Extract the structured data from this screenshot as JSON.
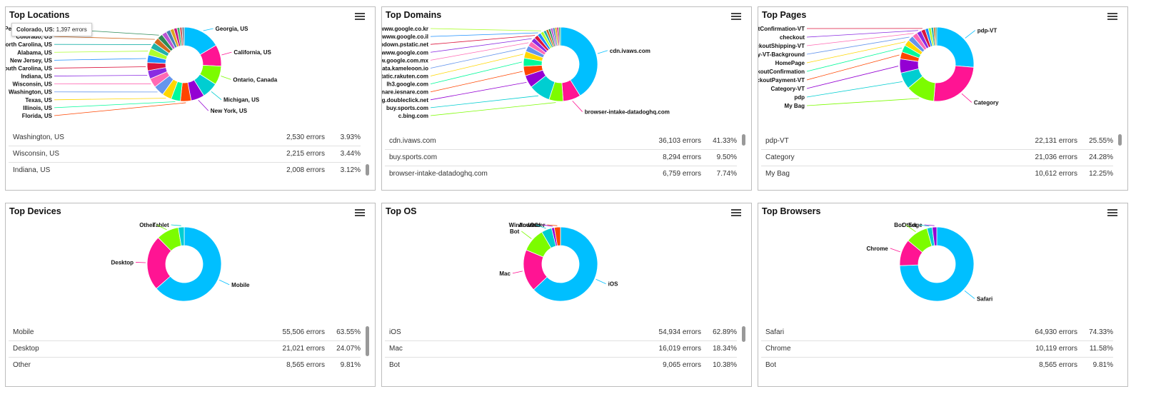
{
  "colors": {
    "palette": [
      "#00BFFF",
      "#FF1493",
      "#7CFC00",
      "#00CED1",
      "#9400D3",
      "#FF4500",
      "#00FA9A",
      "#FFD700",
      "#6495ED",
      "#FF69B4",
      "#8A2BE2",
      "#DC143C",
      "#1E90FF",
      "#ADFF2F",
      "#20B2AA",
      "#D2691E",
      "#2E8B57",
      "#BA55D3",
      "#4682B4",
      "#DAA520",
      "#C71585",
      "#3CB371",
      "#CD5C5C",
      "#708090",
      "#A9A9A9",
      "#C0C0C0",
      "#D3D3D3",
      "#E0E0E0"
    ]
  },
  "cards": [
    {
      "title": "Top Locations",
      "tooltip": {
        "label": "Colorado, US:",
        "value": "1,397 errors"
      },
      "rows": [
        {
          "name": "Washington, US",
          "errors": "2,530 errors",
          "pct": "3.93%"
        },
        {
          "name": "Wisconsin, US",
          "errors": "2,215 errors",
          "pct": "3.44%"
        },
        {
          "name": "Indiana, US",
          "errors": "2,008 errors",
          "pct": "3.12%"
        }
      ],
      "chart_data": {
        "type": "pie",
        "donut": true,
        "labels": [
          "Georgia, US",
          "California, US",
          "Ontario, Canada",
          "Michigan, US",
          "New York, US",
          "Florida, US",
          "Illinois, US",
          "Texas, US",
          "Washington, US",
          "Wisconsin, US",
          "Indiana, US",
          "South Carolina, US",
          "New Jersey, US",
          "Alabama, US",
          "North Carolina, US",
          "Colorado, US",
          "Pennsylvania, US",
          "",
          "",
          "",
          "",
          "",
          "",
          ""
        ],
        "values": [
          14,
          8,
          7,
          6,
          5,
          4,
          3.5,
          3.5,
          3.93,
          3.44,
          3.12,
          3,
          2.8,
          2.6,
          2.4,
          2.17,
          2,
          1.8,
          1.6,
          1.4,
          1.2,
          1,
          0.9,
          0.8
        ],
        "label_side": [
          "r",
          "r",
          "r",
          "r",
          "r",
          "l",
          "l",
          "l",
          "l",
          "l",
          "l",
          "l",
          "l",
          "l",
          "l",
          "l",
          "l",
          "",
          "",
          "",
          "",
          "",
          "",
          ""
        ]
      }
    },
    {
      "title": "Top Domains",
      "rows": [
        {
          "name": "cdn.ivaws.com",
          "errors": "36,103 errors",
          "pct": "41.33%"
        },
        {
          "name": "buy.sports.com",
          "errors": "8,294 errors",
          "pct": "9.50%"
        },
        {
          "name": "browser-intake-datadoghq.com",
          "errors": "6,759 errors",
          "pct": "7.74%"
        }
      ],
      "chart_data": {
        "type": "pie",
        "donut": true,
        "labels": [
          "cdn.ivaws.com",
          "browser-intake-datadoghq.com",
          "c.bing.com",
          "buy.sports.com",
          "googleads.g.doubleclick.net",
          "mpsnare.iesnare.com",
          "lh3.google.com",
          "static.rakuten.com",
          "na-data.kameleoon.io",
          "www.google.com.mx",
          "www.google.com",
          "appdown.pstatic.net",
          "www.google.co.il",
          "www.google.co.kr",
          "",
          "",
          "",
          "",
          "",
          "",
          "",
          ""
        ],
        "values": [
          41.33,
          7.74,
          6.2,
          9.5,
          5.5,
          4.2,
          3.6,
          3.0,
          2.6,
          2.3,
          2.0,
          1.8,
          1.6,
          1.4,
          1.2,
          1.1,
          1.0,
          1.0,
          0.9,
          0.9,
          0.8,
          0.8
        ],
        "label_side": [
          "r",
          "r",
          "l",
          "l",
          "l",
          "l",
          "l",
          "l",
          "l",
          "l",
          "l",
          "l",
          "l",
          "l",
          "",
          "",
          "",
          "",
          "",
          "",
          "",
          ""
        ]
      }
    },
    {
      "title": "Top Pages",
      "rows": [
        {
          "name": "pdp-VT",
          "errors": "22,131 errors",
          "pct": "25.55%"
        },
        {
          "name": "Category",
          "errors": "21,036 errors",
          "pct": "24.28%"
        },
        {
          "name": "My Bag",
          "errors": "10,612 errors",
          "pct": "12.25%"
        }
      ],
      "chart_data": {
        "type": "pie",
        "donut": true,
        "labels": [
          "pdp-VT",
          "Category",
          "My Bag",
          "pdp",
          "Category-VT",
          "checkoutPayment-VT",
          "checkoutConfirmation",
          "HomePage",
          "Category-VT-Background",
          "checkoutShipping-VT",
          "checkout",
          "checkoutConfirmation-VT",
          "",
          "",
          "",
          "",
          ""
        ],
        "values": [
          25.55,
          24.28,
          12.25,
          7,
          6,
          3,
          3,
          2.6,
          2.4,
          2.2,
          2,
          1.8,
          1.4,
          1.2,
          1.0,
          0.8,
          0.6
        ],
        "label_side": [
          "r",
          "r",
          "l",
          "l",
          "l",
          "l",
          "l",
          "l",
          "l",
          "l",
          "l",
          "l",
          "",
          "",
          "",
          "",
          ""
        ]
      }
    },
    {
      "title": "Top Devices",
      "rows": [
        {
          "name": "Mobile",
          "errors": "55,506 errors",
          "pct": "63.55%"
        },
        {
          "name": "Desktop",
          "errors": "21,021 errors",
          "pct": "24.07%"
        },
        {
          "name": "Other",
          "errors": "8,565 errors",
          "pct": "9.81%"
        }
      ],
      "chart_data": {
        "type": "pie",
        "donut": true,
        "labels": [
          "Mobile",
          "Desktop",
          "Other",
          "Tablet"
        ],
        "values": [
          63.55,
          24.07,
          9.81,
          2.57
        ],
        "label_side": [
          "r",
          "l",
          "l",
          "l"
        ]
      }
    },
    {
      "title": "Top OS",
      "rows": [
        {
          "name": "iOS",
          "errors": "54,934 errors",
          "pct": "62.89%"
        },
        {
          "name": "Mac",
          "errors": "16,019 errors",
          "pct": "18.34%"
        },
        {
          "name": "Bot",
          "errors": "9,065 errors",
          "pct": "10.38%"
        }
      ],
      "chart_data": {
        "type": "pie",
        "donut": true,
        "labels": [
          "iOS",
          "Mac",
          "Bot",
          "Windows",
          "Android",
          "Other"
        ],
        "values": [
          62.89,
          18.34,
          10.38,
          4.5,
          1.2,
          2.69
        ],
        "label_side": [
          "r",
          "l",
          "l",
          "l",
          "l",
          "l"
        ]
      }
    },
    {
      "title": "Top Browsers",
      "rows": [
        {
          "name": "Safari",
          "errors": "64,930 errors",
          "pct": "74.33%"
        },
        {
          "name": "Chrome",
          "errors": "10,119 errors",
          "pct": "11.58%"
        },
        {
          "name": "Bot",
          "errors": "8,565 errors",
          "pct": "9.81%"
        }
      ],
      "chart_data": {
        "type": "pie",
        "donut": true,
        "labels": [
          "Safari",
          "Chrome",
          "Bot",
          "Other",
          "Edge"
        ],
        "values": [
          74.33,
          11.58,
          9.81,
          2.3,
          1.98
        ],
        "label_side": [
          "r",
          "l",
          "l",
          "l",
          "l"
        ]
      }
    }
  ]
}
